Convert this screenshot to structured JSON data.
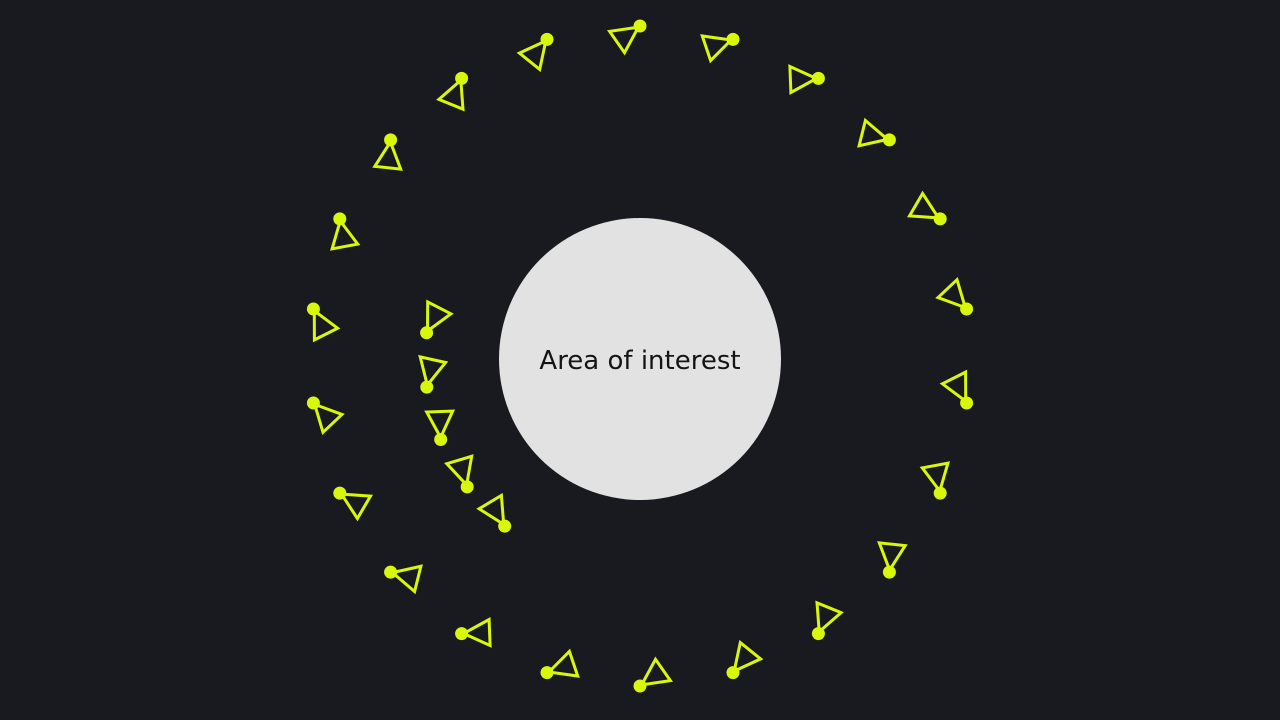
{
  "area": {
    "label": "Area of interest",
    "fill_color": "#e2e2e2",
    "text_color": "#141414"
  },
  "background_color": "#191a1f",
  "marker": {
    "icon": "triangle-with-dot",
    "color": "#d9f70b",
    "outer_ring_count": 22,
    "inner_arc_count": 5
  }
}
